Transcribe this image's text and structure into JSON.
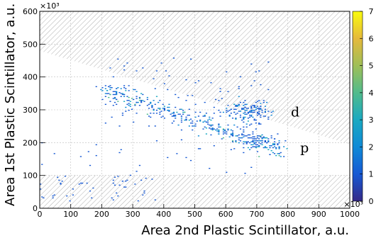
{
  "chart_data": {
    "type": "heatmap",
    "title": "",
    "xlabel": "Area 2nd Plastic Scintillator, a.u.",
    "ylabel": "Area 1st Plastic Scintillator, a.u.",
    "x_multiplier_label": "×10³",
    "y_multiplier_label": "×10³",
    "xlim": [
      0,
      1000
    ],
    "ylim": [
      0,
      600
    ],
    "x_ticks": [
      0,
      100,
      200,
      300,
      400,
      500,
      600,
      700,
      800,
      900,
      1000
    ],
    "y_ticks": [
      0,
      100,
      200,
      300,
      400,
      500,
      600
    ],
    "grid": true,
    "colorbar": {
      "min": 0,
      "max": 7,
      "ticks": [
        0,
        1,
        2,
        3,
        4,
        5,
        6,
        7
      ],
      "colors": [
        "#352a87",
        "#1659d4",
        "#0f8ad6",
        "#1aa9c1",
        "#51bb8c",
        "#9fbf57",
        "#e5b93b",
        "#f9fb0e"
      ]
    },
    "excluded_regions": [
      {
        "name": "upper cut",
        "polygon": [
          [
            0,
            600
          ],
          [
            1000,
            600
          ],
          [
            1000,
            195
          ],
          [
            0,
            480
          ]
        ]
      },
      {
        "name": "lower cut",
        "polygon": [
          [
            0,
            0
          ],
          [
            1000,
            0
          ],
          [
            1000,
            100
          ],
          [
            0,
            100
          ]
        ]
      }
    ],
    "clusters": [
      {
        "name": "d",
        "center": [
          670,
          295
        ],
        "spread": [
          40,
          18
        ],
        "count": 130,
        "max_count": 3
      },
      {
        "name": "p band",
        "from": [
          200,
          360
        ],
        "to": [
          780,
          180
        ],
        "width": 14,
        "count": 320,
        "max_count": 4
      },
      {
        "name": "p core",
        "center": [
          710,
          200
        ],
        "spread": [
          35,
          14
        ],
        "count": 90,
        "max_count": 4
      },
      {
        "name": "scatter upper",
        "box": [
          [
            200,
            250
          ],
          [
            750,
            460
          ]
        ],
        "count": 90,
        "max_count": 1
      },
      {
        "name": "scatter low",
        "box": [
          [
            0,
            20
          ],
          [
            400,
            100
          ]
        ],
        "count": 50,
        "max_count": 1
      },
      {
        "name": "scatter mid",
        "box": [
          [
            0,
            100
          ],
          [
            700,
            250
          ]
        ],
        "count": 35,
        "max_count": 1
      }
    ],
    "annotations": [
      {
        "text": "d",
        "x": 810,
        "y": 280
      },
      {
        "text": "p",
        "x": 840,
        "y": 170
      }
    ]
  }
}
